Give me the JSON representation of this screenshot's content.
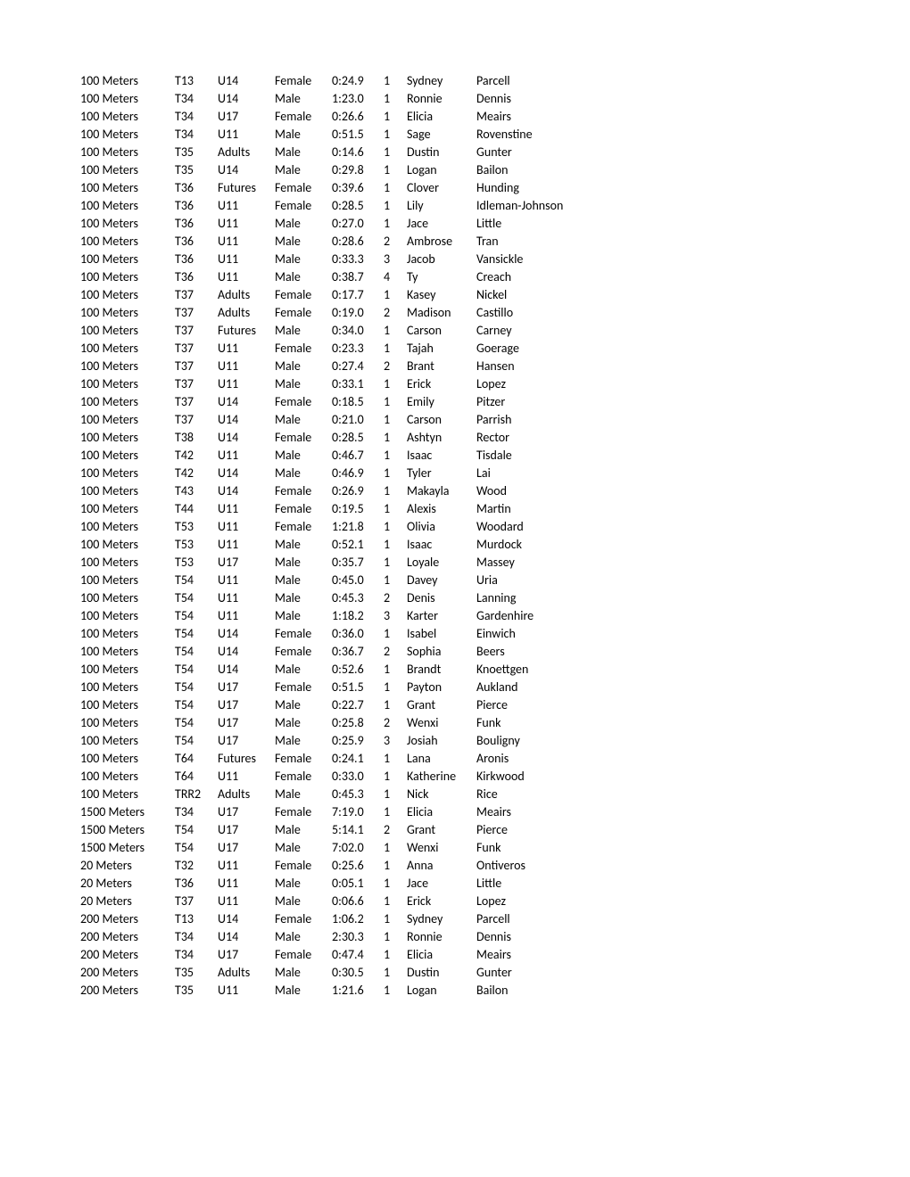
{
  "rows": [
    [
      "100 Meters",
      "T13",
      "U14",
      "Female",
      "0:24.9",
      "1",
      "Sydney",
      "Parcell"
    ],
    [
      "100 Meters",
      "T34",
      "U14",
      "Male",
      "1:23.0",
      "1",
      "Ronnie",
      "Dennis"
    ],
    [
      "100 Meters",
      "T34",
      "U17",
      "Female",
      "0:26.6",
      "1",
      "Elicia",
      "Meairs"
    ],
    [
      "100 Meters",
      "T34",
      "U11",
      "Male",
      "0:51.5",
      "1",
      "Sage",
      "Rovenstine"
    ],
    [
      "100 Meters",
      "T35",
      "Adults",
      "Male",
      "0:14.6",
      "1",
      "Dustin",
      "Gunter"
    ],
    [
      "100 Meters",
      "T35",
      "U14",
      "Male",
      "0:29.8",
      "1",
      "Logan",
      "Bailon"
    ],
    [
      "100 Meters",
      "T36",
      "Futures",
      "Female",
      "0:39.6",
      "1",
      "Clover",
      "Hunding"
    ],
    [
      "100 Meters",
      "T36",
      "U11",
      "Female",
      "0:28.5",
      "1",
      "Lily",
      "Idleman-Johnson"
    ],
    [
      "100 Meters",
      "T36",
      "U11",
      "Male",
      "0:27.0",
      "1",
      "Jace",
      "Little"
    ],
    [
      "100 Meters",
      "T36",
      "U11",
      "Male",
      "0:28.6",
      "2",
      "Ambrose",
      "Tran"
    ],
    [
      "100 Meters",
      "T36",
      "U11",
      "Male",
      "0:33.3",
      "3",
      "Jacob",
      "Vansickle"
    ],
    [
      "100 Meters",
      "T36",
      "U11",
      "Male",
      "0:38.7",
      "4",
      "Ty",
      "Creach"
    ],
    [
      "100 Meters",
      "T37",
      "Adults",
      "Female",
      "0:17.7",
      "1",
      "Kasey",
      "Nickel"
    ],
    [
      "100 Meters",
      "T37",
      "Adults",
      "Female",
      "0:19.0",
      "2",
      "Madison",
      "Castillo"
    ],
    [
      "100 Meters",
      "T37",
      "Futures",
      "Male",
      "0:34.0",
      "1",
      "Carson",
      "Carney"
    ],
    [
      "100 Meters",
      "T37",
      "U11",
      "Female",
      "0:23.3",
      "1",
      "Tajah",
      "Goerage"
    ],
    [
      "100 Meters",
      "T37",
      "U11",
      "Male",
      "0:27.4",
      "2",
      "Brant",
      "Hansen"
    ],
    [
      "100 Meters",
      "T37",
      "U11",
      "Male",
      "0:33.1",
      "1",
      "Erick",
      "Lopez"
    ],
    [
      "100 Meters",
      "T37",
      "U14",
      "Female",
      "0:18.5",
      "1",
      "Emily",
      "Pitzer"
    ],
    [
      "100 Meters",
      "T37",
      "U14",
      "Male",
      "0:21.0",
      "1",
      "Carson",
      "Parrish"
    ],
    [
      "100 Meters",
      "T38",
      "U14",
      "Female",
      "0:28.5",
      "1",
      "Ashtyn",
      "Rector"
    ],
    [
      "100 Meters",
      "T42",
      "U11",
      "Male",
      "0:46.7",
      "1",
      "Isaac",
      "Tisdale"
    ],
    [
      "100 Meters",
      "T42",
      "U14",
      "Male",
      "0:46.9",
      "1",
      "Tyler",
      "Lai"
    ],
    [
      "100 Meters",
      "T43",
      "U14",
      "Female",
      "0:26.9",
      "1",
      "Makayla",
      "Wood"
    ],
    [
      "100 Meters",
      "T44",
      "U11",
      "Female",
      "0:19.5",
      "1",
      "Alexis",
      "Martin"
    ],
    [
      "100 Meters",
      "T53",
      "U11",
      "Female",
      "1:21.8",
      "1",
      "Olivia",
      "Woodard"
    ],
    [
      "100 Meters",
      "T53",
      "U11",
      "Male",
      "0:52.1",
      "1",
      "Isaac",
      "Murdock"
    ],
    [
      "100 Meters",
      "T53",
      "U17",
      "Male",
      "0:35.7",
      "1",
      "Loyale",
      "Massey"
    ],
    [
      "100 Meters",
      "T54",
      "U11",
      "Male",
      "0:45.0",
      "1",
      "Davey",
      "Uria"
    ],
    [
      "100 Meters",
      "T54",
      "U11",
      "Male",
      "0:45.3",
      "2",
      "Denis",
      "Lanning"
    ],
    [
      "100 Meters",
      "T54",
      "U11",
      "Male",
      "1:18.2",
      "3",
      "Karter",
      "Gardenhire"
    ],
    [
      "100 Meters",
      "T54",
      "U14",
      "Female",
      "0:36.0",
      "1",
      "Isabel",
      "Einwich"
    ],
    [
      "100 Meters",
      "T54",
      "U14",
      "Female",
      "0:36.7",
      "2",
      "Sophia",
      "Beers"
    ],
    [
      "100 Meters",
      "T54",
      "U14",
      "Male",
      "0:52.6",
      "1",
      "Brandt",
      "Knoettgen"
    ],
    [
      "100 Meters",
      "T54",
      "U17",
      "Female",
      "0:51.5",
      "1",
      "Payton",
      "Aukland"
    ],
    [
      "100 Meters",
      "T54",
      "U17",
      "Male",
      "0:22.7",
      "1",
      "Grant",
      "Pierce"
    ],
    [
      "100 Meters",
      "T54",
      "U17",
      "Male",
      "0:25.8",
      "2",
      "Wenxi",
      "Funk"
    ],
    [
      "100 Meters",
      "T54",
      "U17",
      "Male",
      "0:25.9",
      "3",
      "Josiah",
      "Bouligny"
    ],
    [
      "100 Meters",
      "T64",
      "Futures",
      "Female",
      "0:24.1",
      "1",
      "Lana",
      "Aronis"
    ],
    [
      "100 Meters",
      "T64",
      "U11",
      "Female",
      "0:33.0",
      "1",
      "Katherine",
      "Kirkwood"
    ],
    [
      "100 Meters",
      "TRR2",
      "Adults",
      "Male",
      "0:45.3",
      "1",
      "Nick",
      "Rice"
    ],
    [
      "1500 Meters",
      "T34",
      "U17",
      "Female",
      "7:19.0",
      "1",
      "Elicia",
      "Meairs"
    ],
    [
      "1500 Meters",
      "T54",
      "U17",
      "Male",
      "5:14.1",
      "2",
      "Grant",
      "Pierce"
    ],
    [
      "1500 Meters",
      "T54",
      "U17",
      "Male",
      "7:02.0",
      "1",
      "Wenxi",
      "Funk"
    ],
    [
      "20 Meters",
      "T32",
      "U11",
      "Female",
      "0:25.6",
      "1",
      "Anna",
      "Ontiveros"
    ],
    [
      "20 Meters",
      "T36",
      "U11",
      "Male",
      "0:05.1",
      "1",
      "Jace",
      "Little"
    ],
    [
      "20 Meters",
      "T37",
      "U11",
      "Male",
      "0:06.6",
      "1",
      "Erick",
      "Lopez"
    ],
    [
      "200 Meters",
      "T13",
      "U14",
      "Female",
      "1:06.2",
      "1",
      "Sydney",
      "Parcell"
    ],
    [
      "200 Meters",
      "T34",
      "U14",
      "Male",
      "2:30.3",
      "1",
      "Ronnie",
      "Dennis"
    ],
    [
      "200 Meters",
      "T34",
      "U17",
      "Female",
      "0:47.4",
      "1",
      "Elicia",
      "Meairs"
    ],
    [
      "200 Meters",
      "T35",
      "Adults",
      "Male",
      "0:30.5",
      "1",
      "Dustin",
      "Gunter"
    ],
    [
      "200 Meters",
      "T35",
      "U11",
      "Male",
      "1:21.6",
      "1",
      "Logan",
      "Bailon"
    ]
  ]
}
